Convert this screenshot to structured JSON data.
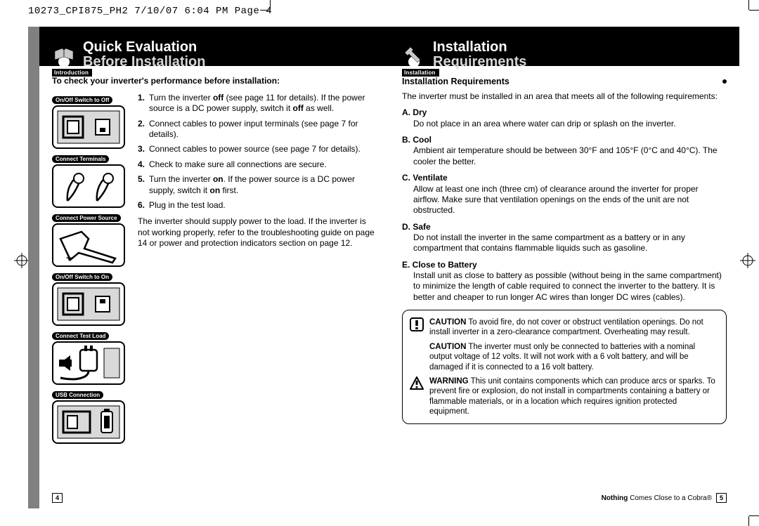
{
  "print_header": "10273_CPI875_PH2  7/10/07  6:04 PM  Page 4",
  "colors": {
    "band": "#000000",
    "subtitle": "#d7d7d7",
    "gutter": "#808080"
  },
  "left": {
    "tab": "Introduction",
    "title1": "Quick Evaluation",
    "title2": "Before Installation",
    "intro": "To check your inverter's performance before installation:",
    "figures": [
      "On/Off Switch to Off",
      "Connect Terminals",
      "Connect Power Source",
      "On/Off Switch to On",
      "Connect Test Load",
      "USB Connection"
    ],
    "steps": [
      {
        "n": "1.",
        "html": "Turn the inverter <b>off</b> (see page 11 for details). If the power source is a DC power supply, switch it <b>off</b> as well."
      },
      {
        "n": "2.",
        "html": "Connect cables to power input terminals (see page 7 for details)."
      },
      {
        "n": "3.",
        "html": "Connect cables to power source (see page 7 for details)."
      },
      {
        "n": "4.",
        "html": "Check to make sure all connections are secure."
      },
      {
        "n": "5.",
        "html": "Turn the inverter <b>on</b>. If the power source is a DC power supply, switch it <b>on</b> first."
      },
      {
        "n": "6.",
        "html": "Plug in the test load."
      }
    ],
    "trail": "The inverter should supply power to the load. If the inverter is not working properly, refer to the troubleshooting guide on page 14 or power and protection indicators section on page 12.",
    "page_num": "4"
  },
  "right": {
    "tab": "Installation",
    "title1": "Installation",
    "title2": "Requirements",
    "heading": "Installation Requirements",
    "intro": "The inverter must be installed in an area that meets all of the following requirements:",
    "items": [
      {
        "label": "A. Dry",
        "desc": "Do not place in an area where water can drip or splash on the inverter."
      },
      {
        "label": "B. Cool",
        "desc": "Ambient air temperature should be between 30°F and 105°F (0°C and 40°C). The cooler the better."
      },
      {
        "label": "C. Ventilate",
        "desc": "Allow at least one inch (three cm) of clearance around the inverter for proper airflow. Make sure that ventilation openings on the ends of the unit are not obstructed."
      },
      {
        "label": "D. Safe",
        "desc": "Do not install the inverter in the same compartment as a battery or in any compartment that contains flammable liquids such as gasoline."
      },
      {
        "label": "E. Close to Battery",
        "desc": "Install unit as close to battery as possible (without being in the same compartment) to minimize the length of cable required to connect the inverter to the battery. It is better and cheaper to run longer AC wires than longer DC wires (cables)."
      }
    ],
    "callouts": [
      {
        "icon": "caution-sq",
        "lead": "CAUTION",
        "text": " To avoid fire, do not cover or obstruct ventilation openings. Do not install inverter in a zero-clearance compartment. Overheating may result."
      },
      {
        "icon": "none",
        "lead": "CAUTION",
        "text": " The inverter must only be connected to batteries with a nominal output voltage of 12 volts. It will not work with a 6 volt battery, and will be damaged if it is connected to a 16 volt battery."
      },
      {
        "icon": "warn-tri",
        "lead": "WARNING",
        "text": " This unit contains components which can produce arcs or sparks. To prevent fire or explosion, do not install in compartments containing a battery or flammable materials, or in a location which requires ignition protected equipment."
      }
    ],
    "tagline_bold": "Nothing",
    "tagline_rest": " Comes Close to a Cobra®",
    "page_num": "5"
  }
}
